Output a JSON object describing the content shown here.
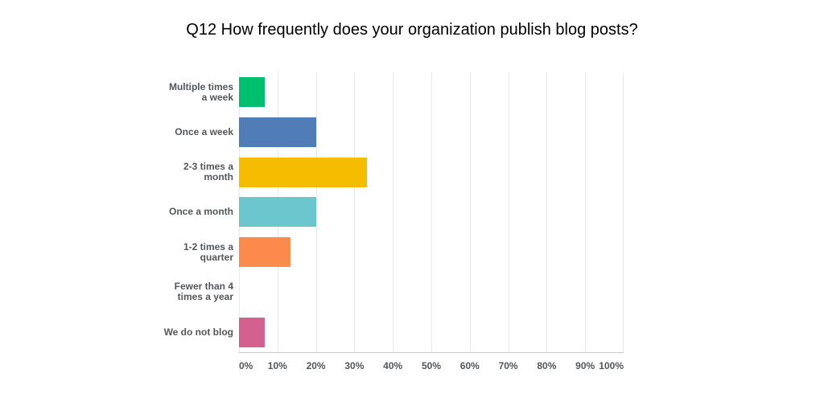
{
  "chart_data": {
    "type": "bar",
    "orientation": "horizontal",
    "title": "Q12 How frequently does your organization publish blog posts?",
    "categories": [
      "Multiple times a week",
      "Once a week",
      "2-3 times a month",
      "Once a month",
      "1-2 times a quarter",
      "Fewer than 4 times a year",
      "We do not blog"
    ],
    "category_label_lines": [
      [
        "Multiple times",
        "a week"
      ],
      [
        "Once a week"
      ],
      [
        "2-3 times a",
        "month"
      ],
      [
        "Once a month"
      ],
      [
        "1-2 times a",
        "quarter"
      ],
      [
        "Fewer than 4",
        "times a year"
      ],
      [
        "We do not blog"
      ]
    ],
    "values": [
      6.67,
      20,
      33.33,
      20,
      13.33,
      0,
      6.67
    ],
    "value_unit": "%",
    "bar_colors": [
      "#00BF6F",
      "#507CB7",
      "#F5BC00",
      "#6BC6CD",
      "#FC8A4D",
      null,
      "#D4608F"
    ],
    "xlim": [
      0,
      100
    ],
    "x_ticks": [
      "0%",
      "10%",
      "20%",
      "30%",
      "40%",
      "50%",
      "60%",
      "70%",
      "80%",
      "90%",
      "100%"
    ],
    "grid": "vertical",
    "legend": "none",
    "colors": {
      "label_text": "#53575a",
      "gridline": "#e9e9e9",
      "axis_line": "#c9cacb",
      "background": "#ffffff",
      "title_text": "#000000"
    }
  }
}
